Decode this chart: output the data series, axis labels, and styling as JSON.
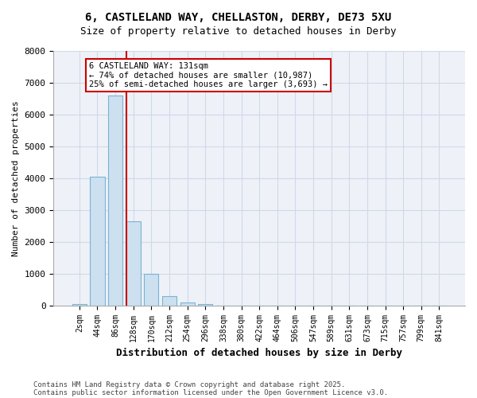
{
  "title1": "6, CASTLELAND WAY, CHELLASTON, DERBY, DE73 5XU",
  "title2": "Size of property relative to detached houses in Derby",
  "xlabel": "Distribution of detached houses by size in Derby",
  "ylabel": "Number of detached properties",
  "bar_labels": [
    "2sqm",
    "44sqm",
    "86sqm",
    "128sqm",
    "170sqm",
    "212sqm",
    "254sqm",
    "296sqm",
    "338sqm",
    "380sqm",
    "422sqm",
    "464sqm",
    "506sqm",
    "547sqm",
    "589sqm",
    "631sqm",
    "673sqm",
    "715sqm",
    "757sqm",
    "799sqm",
    "841sqm"
  ],
  "bar_values": [
    50,
    4050,
    6600,
    2650,
    1000,
    300,
    100,
    50,
    0,
    0,
    0,
    0,
    0,
    0,
    0,
    0,
    0,
    0,
    0,
    0,
    0
  ],
  "bar_color": "#cce0f0",
  "bar_edge_color": "#7ab3d4",
  "grid_color": "#d0d8e8",
  "background_color": "#eef2f8",
  "vline_color": "#cc0000",
  "vline_x": 2.6,
  "annotation_text": "6 CASTLELAND WAY: 131sqm\n← 74% of detached houses are smaller (10,987)\n25% of semi-detached houses are larger (3,693) →",
  "annotation_box_color": "#cc0000",
  "ylim": [
    0,
    8000
  ],
  "yticks": [
    0,
    1000,
    2000,
    3000,
    4000,
    5000,
    6000,
    7000,
    8000
  ],
  "footnote1": "Contains HM Land Registry data © Crown copyright and database right 2025.",
  "footnote2": "Contains public sector information licensed under the Open Government Licence v3.0."
}
